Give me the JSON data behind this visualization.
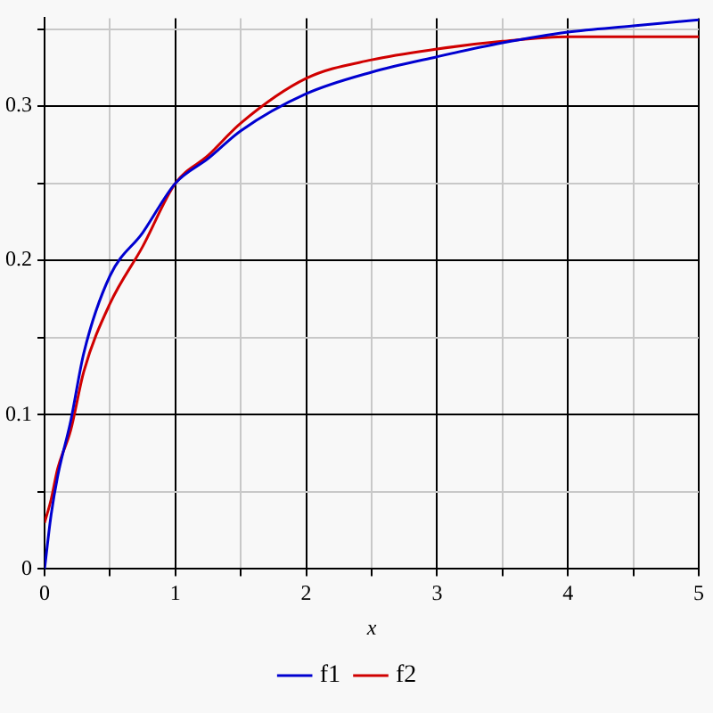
{
  "chart_data": {
    "type": "line",
    "xlabel": "x",
    "x": [
      0,
      0.05,
      0.1,
      0.2,
      0.3,
      0.5,
      0.75,
      1,
      1.25,
      1.5,
      2,
      2.5,
      3,
      3.5,
      4,
      4.5,
      5
    ],
    "series": [
      {
        "name": "f1",
        "color": "#0000d0",
        "values": [
          0,
          0.035,
          0.06,
          0.096,
          0.14,
          0.19,
          0.218,
          0.25,
          0.266,
          0.284,
          0.308,
          0.322,
          0.332,
          0.341,
          0.348,
          0.352,
          0.356
        ]
      },
      {
        "name": "f2",
        "color": "#d00000",
        "values": [
          0.03,
          0.045,
          0.065,
          0.09,
          0.128,
          0.172,
          0.209,
          0.25,
          0.268,
          0.289,
          0.318,
          0.33,
          0.337,
          0.342,
          0.345,
          0.345,
          0.345
        ]
      }
    ],
    "xlim": [
      0,
      5
    ],
    "xticks": [
      0,
      {
        "value": 0.5,
        "label": null
      },
      1,
      {
        "value": 1.5,
        "label": null
      },
      2,
      {
        "value": 2.5,
        "label": null
      },
      3,
      {
        "value": 3.5,
        "label": null
      },
      4,
      {
        "value": 4.5,
        "label": null
      },
      5
    ],
    "ylim": [
      0,
      0.357
    ],
    "yticks": [
      0,
      {
        "value": 0.05,
        "label": null
      },
      0.1,
      {
        "value": 0.15,
        "label": null
      },
      0.2,
      {
        "value": 0.25,
        "label": null
      },
      0.3,
      {
        "value": 0.35,
        "label": null
      }
    ],
    "grid": true,
    "legend": "bottom",
    "marker": "none",
    "line_style": "solid"
  }
}
